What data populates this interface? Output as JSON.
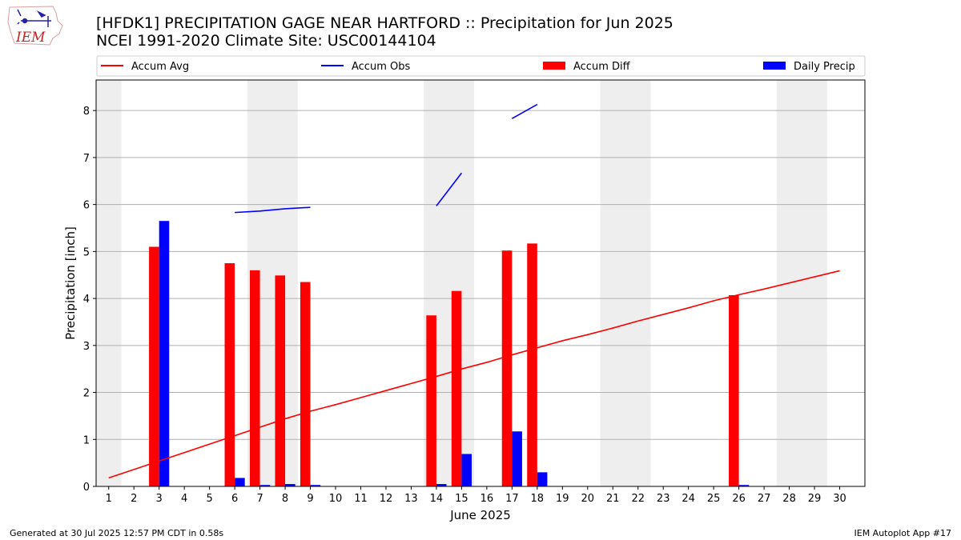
{
  "header": {
    "title_line1": "[HFDK1] PRECIPITATION GAGE NEAR HARTFORD :: Precipitation for Jun 2025",
    "title_line2": "NCEI 1991-2020 Climate Site: USC00144104",
    "logo_text": "IEM"
  },
  "footer": {
    "left": "Generated at 30 Jul 2025 12:57 PM CDT in 0.58s",
    "right": "IEM Autoplot App #17"
  },
  "colors": {
    "accum_avg": "#ff0000",
    "accum_obs": "#0000ff",
    "accum_diff": "#ff0000",
    "daily_precip": "#0000ff",
    "weekend_band": "#eeeeee",
    "grid": "#b0b0b0"
  },
  "chart_data": {
    "type": "bar",
    "title": "[HFDK1] PRECIPITATION GAGE NEAR HARTFORD :: Precipitation for Jun 2025",
    "subtitle": "NCEI 1991-2020 Climate Site: USC00144104",
    "xlabel": "June 2025",
    "ylabel": "Precipitation [inch]",
    "xlim": [
      0.5,
      31
    ],
    "ylim": [
      0,
      8.65
    ],
    "x_ticks": [
      1,
      2,
      3,
      4,
      5,
      6,
      7,
      8,
      9,
      10,
      11,
      12,
      13,
      14,
      15,
      16,
      17,
      18,
      19,
      20,
      21,
      22,
      23,
      24,
      25,
      26,
      27,
      28,
      29,
      30
    ],
    "y_ticks": [
      0,
      1,
      2,
      3,
      4,
      5,
      6,
      7,
      8
    ],
    "grid": "horizontal",
    "legend_position": "top",
    "weekend_bands": [
      [
        0.5,
        1.5
      ],
      [
        6.5,
        8.5
      ],
      [
        13.5,
        15.5
      ],
      [
        20.5,
        22.5
      ],
      [
        27.5,
        29.5
      ]
    ],
    "legend": [
      "Accum Avg",
      "Accum Obs",
      "Accum Diff",
      "Daily Precip"
    ],
    "series": [
      {
        "name": "Accum Avg",
        "type": "line",
        "points": [
          [
            1,
            0.18
          ],
          [
            2,
            0.36
          ],
          [
            3,
            0.54
          ],
          [
            4,
            0.72
          ],
          [
            5,
            0.9
          ],
          [
            6,
            1.08
          ],
          [
            7,
            1.26
          ],
          [
            8,
            1.44
          ],
          [
            9,
            1.6
          ],
          [
            10,
            1.74
          ],
          [
            11,
            1.89
          ],
          [
            12,
            2.04
          ],
          [
            13,
            2.19
          ],
          [
            14,
            2.34
          ],
          [
            15,
            2.5
          ],
          [
            16,
            2.64
          ],
          [
            17,
            2.8
          ],
          [
            18,
            2.95
          ],
          [
            19,
            3.1
          ],
          [
            20,
            3.23
          ],
          [
            21,
            3.37
          ],
          [
            22,
            3.52
          ],
          [
            23,
            3.66
          ],
          [
            24,
            3.8
          ],
          [
            25,
            3.95
          ],
          [
            26,
            4.08
          ],
          [
            27,
            4.2
          ],
          [
            28,
            4.33
          ],
          [
            29,
            4.46
          ],
          [
            30,
            4.59
          ]
        ]
      },
      {
        "name": "Accum Obs",
        "type": "line",
        "segments": [
          [
            [
              6,
              5.83
            ],
            [
              7,
              5.86
            ],
            [
              8,
              5.91
            ],
            [
              9,
              5.94
            ]
          ],
          [
            [
              14,
              5.97
            ],
            [
              15,
              6.67
            ]
          ],
          [
            [
              17,
              7.83
            ],
            [
              18,
              8.13
            ]
          ]
        ]
      },
      {
        "name": "Accum Diff",
        "type": "bar",
        "x": [
          3,
          6,
          7,
          8,
          9,
          14,
          15,
          17,
          18,
          26
        ],
        "values": [
          5.1,
          4.75,
          4.6,
          4.49,
          4.35,
          3.64,
          4.16,
          5.02,
          5.17,
          4.07
        ]
      },
      {
        "name": "Daily Precip",
        "type": "bar",
        "x": [
          3,
          6,
          7,
          8,
          9,
          14,
          15,
          17,
          18,
          26
        ],
        "values": [
          5.65,
          0.18,
          0.03,
          0.05,
          0.03,
          0.05,
          0.69,
          1.17,
          0.3,
          0.03
        ]
      }
    ]
  }
}
